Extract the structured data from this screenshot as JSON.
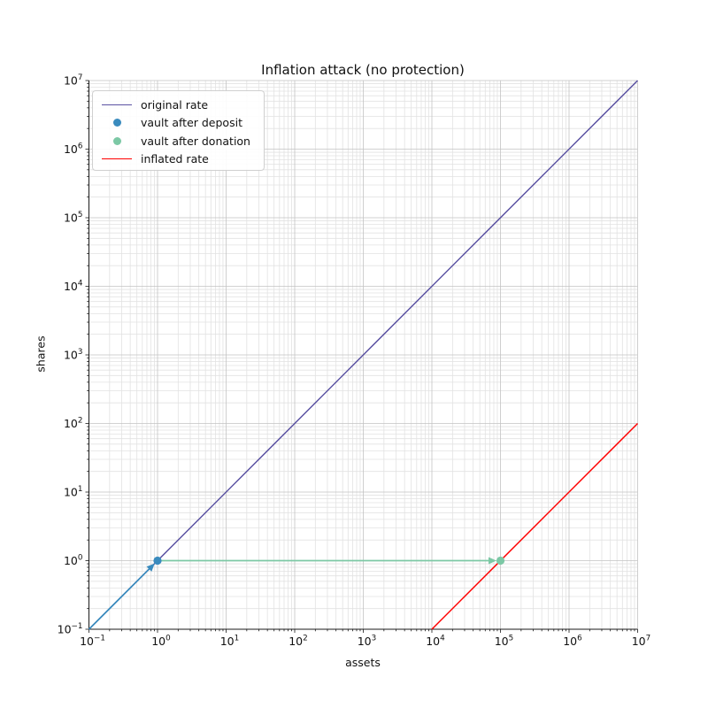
{
  "figure": {
    "title": "Inflation attack (no protection)",
    "xlabel": "assets",
    "ylabel": "shares"
  },
  "chart_data": {
    "type": "line",
    "title": "Inflation attack (no protection)",
    "xlabel": "assets",
    "ylabel": "shares",
    "x_scale": "log",
    "y_scale": "log",
    "xlim": [
      0.1,
      10000000
    ],
    "ylim": [
      0.1,
      10000000
    ],
    "x_tick_exponents": [
      -1,
      0,
      1,
      2,
      3,
      4,
      5,
      6,
      7
    ],
    "y_tick_exponents": [
      -1,
      0,
      1,
      2,
      3,
      4,
      5,
      6,
      7
    ],
    "grid": {
      "major": true,
      "minor": true,
      "major_color": "#c3c3c3",
      "minor_color": "#e2e2e2"
    },
    "spine_color": "#1a1a1a",
    "series": [
      {
        "name": "original rate",
        "type": "line",
        "color": "#5b52a2",
        "points": [
          [
            0.1,
            0.1
          ],
          [
            10000000,
            10000000
          ]
        ]
      },
      {
        "name": "inflated rate",
        "type": "line",
        "color": "#ff0000",
        "points": [
          [
            10000,
            0.1
          ],
          [
            10000000,
            100
          ]
        ]
      }
    ],
    "arrows": [
      {
        "name": "deposit arrow",
        "color": "#3a8bbe",
        "from": [
          0.1,
          0.1
        ],
        "to": [
          1,
          1
        ]
      },
      {
        "name": "donation arrow",
        "color": "#7cc8a5",
        "from": [
          1,
          1
        ],
        "to": [
          100000,
          1
        ]
      }
    ],
    "markers": [
      {
        "name": "vault after deposit",
        "color": "#3a8bbe",
        "point": [
          1,
          1
        ]
      },
      {
        "name": "vault after donation",
        "color": "#7cc8a5",
        "point": [
          100000,
          1
        ]
      }
    ],
    "legend": {
      "position": "upper left",
      "entries": [
        {
          "label": "original rate",
          "sample": "line",
          "color": "#5b52a2"
        },
        {
          "label": "vault after deposit",
          "sample": "marker",
          "color": "#3a8bbe"
        },
        {
          "label": "vault after donation",
          "sample": "marker",
          "color": "#7cc8a5"
        },
        {
          "label": "inflated rate",
          "sample": "line",
          "color": "#ff0000"
        }
      ]
    }
  }
}
